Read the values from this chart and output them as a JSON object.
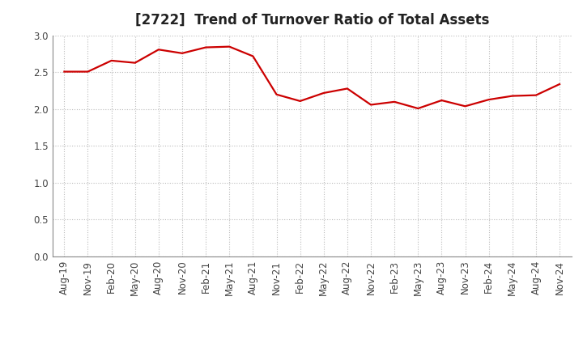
{
  "title": "[2722]  Trend of Turnover Ratio of Total Assets",
  "x_labels": [
    "Aug-19",
    "Nov-19",
    "Feb-20",
    "May-20",
    "Aug-20",
    "Nov-20",
    "Feb-21",
    "May-21",
    "Aug-21",
    "Nov-21",
    "Feb-22",
    "May-22",
    "Aug-22",
    "Nov-22",
    "Feb-23",
    "May-23",
    "Aug-23",
    "Nov-23",
    "Feb-24",
    "May-24",
    "Aug-24",
    "Nov-24"
  ],
  "y_values": [
    2.51,
    2.51,
    2.66,
    2.63,
    2.81,
    2.76,
    2.84,
    2.85,
    2.72,
    2.2,
    2.11,
    2.22,
    2.28,
    2.06,
    2.1,
    2.01,
    2.12,
    2.04,
    2.13,
    2.18,
    2.19,
    2.34
  ],
  "line_color": "#CC0000",
  "line_width": 1.6,
  "ylim": [
    0.0,
    3.0
  ],
  "yticks": [
    0.0,
    0.5,
    1.0,
    1.5,
    2.0,
    2.5,
    3.0
  ],
  "grid_color": "#bbbbbb",
  "background_color": "#ffffff",
  "title_fontsize": 12,
  "tick_fontsize": 8.5,
  "tick_color": "#444444"
}
